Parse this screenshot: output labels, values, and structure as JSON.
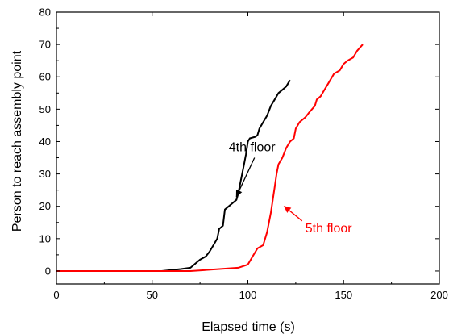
{
  "chart_data": {
    "type": "line",
    "title": "",
    "xlabel": "Elapsed time (s)",
    "ylabel": "Person to reach assembly point",
    "xlim": [
      0,
      200
    ],
    "ylim": [
      -4,
      80
    ],
    "xticks": [
      0,
      50,
      100,
      150,
      200
    ],
    "yticks": [
      0,
      10,
      20,
      30,
      40,
      50,
      60,
      70,
      80
    ],
    "grid": false,
    "series": [
      {
        "name": "4th floor",
        "color": "#000000",
        "points": [
          [
            0,
            0
          ],
          [
            55,
            0
          ],
          [
            60,
            0.3
          ],
          [
            65,
            0.6
          ],
          [
            70,
            1
          ],
          [
            72,
            2
          ],
          [
            75,
            3.5
          ],
          [
            78,
            4.5
          ],
          [
            80,
            6
          ],
          [
            82,
            8
          ],
          [
            84,
            10
          ],
          [
            85,
            13
          ],
          [
            87,
            14
          ],
          [
            88,
            19
          ],
          [
            90,
            20
          ],
          [
            92,
            21
          ],
          [
            94,
            22
          ],
          [
            95,
            24
          ],
          [
            96,
            27
          ],
          [
            97,
            30
          ],
          [
            98,
            33
          ],
          [
            99,
            36
          ],
          [
            100,
            40
          ],
          [
            101,
            41
          ],
          [
            104,
            41.5
          ],
          [
            105,
            42
          ],
          [
            106,
            44
          ],
          [
            108,
            46
          ],
          [
            110,
            48
          ],
          [
            112,
            51
          ],
          [
            114,
            53
          ],
          [
            116,
            55
          ],
          [
            118,
            56
          ],
          [
            120,
            57
          ],
          [
            122,
            59
          ]
        ]
      },
      {
        "name": "5th floor",
        "color": "#ff0000",
        "points": [
          [
            0,
            0
          ],
          [
            70,
            0
          ],
          [
            95,
            1
          ],
          [
            100,
            2
          ],
          [
            103,
            5
          ],
          [
            105,
            7
          ],
          [
            108,
            8
          ],
          [
            110,
            12
          ],
          [
            112,
            18
          ],
          [
            113,
            22
          ],
          [
            114,
            26
          ],
          [
            115,
            30
          ],
          [
            116,
            33
          ],
          [
            118,
            35
          ],
          [
            120,
            38
          ],
          [
            122,
            40
          ],
          [
            124,
            41
          ],
          [
            125,
            44
          ],
          [
            127,
            46
          ],
          [
            130,
            47.5
          ],
          [
            132,
            49
          ],
          [
            135,
            51
          ],
          [
            136,
            53
          ],
          [
            138,
            54
          ],
          [
            140,
            56
          ],
          [
            142,
            58
          ],
          [
            145,
            61
          ],
          [
            148,
            62
          ],
          [
            150,
            64
          ],
          [
            152,
            65
          ],
          [
            155,
            66
          ],
          [
            157,
            68
          ],
          [
            160,
            70
          ]
        ]
      }
    ],
    "annotations": [
      {
        "text": "4th floor",
        "color": "#000000",
        "x": 90,
        "y": 37,
        "arrow_to": [
          94,
          23
        ]
      },
      {
        "text": "5th floor",
        "color": "#ff0000",
        "x": 130,
        "y": 12,
        "arrow_to": [
          119,
          20
        ]
      }
    ]
  }
}
